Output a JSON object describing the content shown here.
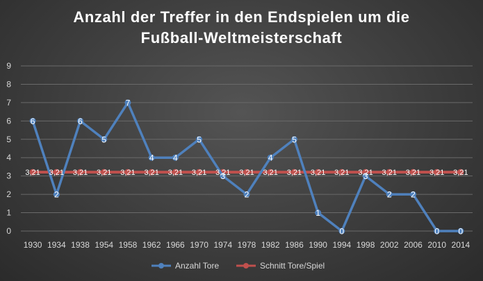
{
  "chart_data": {
    "type": "line",
    "title": [
      "Anzahl der Treffer in den Endspielen um die",
      "Fußball-Weltmeisterschaft"
    ],
    "categories": [
      "1930",
      "1934",
      "1938",
      "1954",
      "1958",
      "1962",
      "1966",
      "1970",
      "1974",
      "1978",
      "1982",
      "1986",
      "1990",
      "1994",
      "1998",
      "2002",
      "2006",
      "2010",
      "2014"
    ],
    "series": [
      {
        "name": "Anzahl Tore",
        "color": "#4f81bd",
        "values": [
          6,
          2,
          6,
          5,
          7,
          4,
          4,
          5,
          3,
          2,
          4,
          5,
          1,
          0,
          3,
          2,
          2,
          0,
          0
        ],
        "labels": [
          "6",
          "2",
          "6",
          "5",
          "7",
          "4",
          "4",
          "5",
          "3",
          "2",
          "4",
          "5",
          "1",
          "0",
          "3",
          "2",
          "2",
          "0",
          "0"
        ]
      },
      {
        "name": "Schnitt Tore/Spiel",
        "color": "#c0504d",
        "values": [
          3.21,
          3.21,
          3.21,
          3.21,
          3.21,
          3.21,
          3.21,
          3.21,
          3.21,
          3.21,
          3.21,
          3.21,
          3.21,
          3.21,
          3.21,
          3.21,
          3.21,
          3.21,
          3.21
        ],
        "labels": [
          "3,21",
          "3,21",
          "3,21",
          "3,21",
          "3,21",
          "3,21",
          "3,21",
          "3,21",
          "3,21",
          "3,21",
          "3,21",
          "3,21",
          "3,21",
          "3,21",
          "3,21",
          "3,21",
          "3,21",
          "3,21",
          "3,21"
        ]
      }
    ],
    "yticks": [
      "0",
      "1",
      "2",
      "3",
      "4",
      "5",
      "6",
      "7",
      "8",
      "9"
    ],
    "ylim": [
      0,
      9
    ],
    "grid": true,
    "legend": "bottom"
  }
}
